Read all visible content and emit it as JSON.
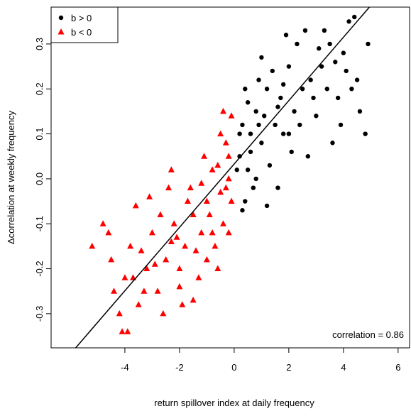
{
  "chart_data": {
    "type": "scatter",
    "xlabel": "return spillover index at daily frequency",
    "ylabel": "Δcorrelation at weekly frequency",
    "annotation": "correlation = 0.86",
    "legend": "top-left",
    "xlim": [
      -6.7,
      6.42
    ],
    "ylim": [
      -0.376,
      0.382
    ],
    "xticks": [
      -4,
      -2,
      0,
      2,
      4,
      6
    ],
    "yticks": [
      -0.3,
      -0.2,
      -0.1,
      {
        "value": 0,
        "label": "0.0"
      },
      0.1,
      0.2,
      0.3
    ],
    "fit": {
      "intercept": 0.033,
      "slope": 0.0705,
      "color": "#000000"
    },
    "series": [
      {
        "name": "b > 0",
        "color": "#000000",
        "marker": "circle",
        "x": [
          0.2,
          0.3,
          0.5,
          0.4,
          0.6,
          0.8,
          1.0,
          1.2,
          0.9,
          1.5,
          1.3,
          1.7,
          2.0,
          1.8,
          2.2,
          2.5,
          2.3,
          2.8,
          3.0,
          3.2,
          3.5,
          3.8,
          4.0,
          4.2,
          4.5,
          4.8,
          3.6,
          2.7,
          1.6,
          0.7,
          0.3,
          1.0,
          1.9,
          2.6,
          3.3,
          4.4,
          4.9,
          4.6,
          3.9,
          2.1,
          1.1,
          0.5,
          0.2,
          1.4,
          2.9,
          3.4,
          4.1,
          0.6,
          1.2,
          0.4,
          2.4,
          3.1,
          1.8,
          0.8,
          4.3,
          2.0,
          0.1,
          0.9,
          1.6,
          3.7
        ],
        "y": [
          0.05,
          0.12,
          0.02,
          -0.05,
          0.1,
          0.15,
          0.08,
          0.2,
          0.22,
          0.12,
          0.03,
          0.18,
          0.25,
          0.1,
          0.15,
          0.2,
          0.3,
          0.22,
          0.14,
          0.25,
          0.3,
          0.18,
          0.28,
          0.35,
          0.22,
          0.1,
          0.08,
          0.05,
          -0.02,
          -0.02,
          -0.07,
          0.27,
          0.32,
          0.33,
          0.33,
          0.36,
          0.3,
          0.15,
          0.12,
          0.06,
          0.14,
          0.17,
          0.1,
          0.24,
          0.18,
          0.2,
          0.24,
          0.06,
          -0.06,
          0.2,
          0.12,
          0.29,
          0.21,
          0.0,
          0.2,
          0.1,
          0.02,
          0.12,
          0.16,
          0.26
        ]
      },
      {
        "name": "b < 0",
        "color": "#ff0000",
        "marker": "triangle",
        "x": [
          -0.1,
          -0.2,
          -0.3,
          -0.5,
          -0.4,
          -0.8,
          -1.0,
          -1.2,
          -0.7,
          -1.5,
          -1.8,
          -2.0,
          -2.2,
          -2.5,
          -2.8,
          -3.0,
          -3.2,
          -3.5,
          -3.8,
          -4.0,
          -4.2,
          -4.5,
          -4.8,
          -5.2,
          -4.1,
          -3.9,
          -3.6,
          -2.4,
          -2.3,
          -1.6,
          -1.1,
          -0.6,
          -0.2,
          -1.3,
          -1.9,
          -2.7,
          -3.3,
          -2.1,
          -1.4,
          -0.9,
          -0.3,
          -0.1,
          -2.9,
          -3.7,
          -4.4,
          -2.6,
          -1.7,
          -0.5,
          -1.2,
          -0.4,
          -3.1,
          -2.0,
          -0.8,
          -4.6,
          -1.0,
          -0.6,
          -3.4,
          -2.3,
          -1.5,
          -0.2
        ],
        "y": [
          0.14,
          0.05,
          -0.02,
          0.1,
          -0.1,
          0.02,
          -0.05,
          -0.12,
          -0.15,
          -0.08,
          -0.15,
          -0.2,
          -0.1,
          -0.18,
          -0.25,
          -0.12,
          -0.2,
          -0.28,
          -0.15,
          -0.22,
          -0.3,
          -0.18,
          -0.1,
          -0.15,
          -0.34,
          -0.34,
          -0.06,
          -0.02,
          0.02,
          -0.02,
          0.05,
          -0.2,
          -0.12,
          -0.22,
          -0.28,
          -0.08,
          -0.25,
          -0.13,
          -0.16,
          -0.08,
          0.08,
          -0.05,
          -0.19,
          -0.22,
          -0.25,
          -0.3,
          -0.05,
          -0.03,
          -0.01,
          0.15,
          -0.04,
          -0.24,
          -0.12,
          -0.12,
          -0.18,
          0.03,
          -0.16,
          -0.14,
          -0.27,
          0.0
        ]
      }
    ]
  }
}
